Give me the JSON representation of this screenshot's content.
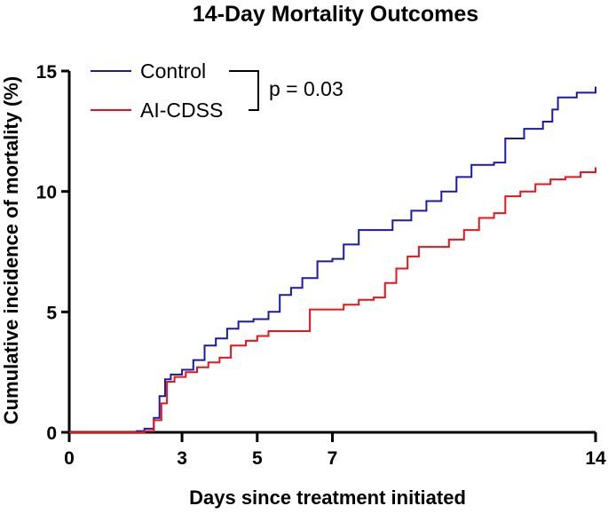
{
  "chart_data": {
    "type": "line",
    "step": true,
    "title": "14-Day Mortality Outcomes",
    "xlabel": "Days since treatment initiated",
    "ylabel": "Cumulative incidence of mortality (%)",
    "xlim": [
      0,
      14
    ],
    "ylim": [
      0,
      15
    ],
    "xticks": [
      0,
      3,
      5,
      7,
      14
    ],
    "yticks": [
      0,
      5,
      10,
      15
    ],
    "legend_position": "top-left",
    "annotation": "p = 0.03",
    "colors": {
      "control": "#1a1aa6",
      "ai_cdss": "#e8141c"
    },
    "series": [
      {
        "name": "Control",
        "key": "control",
        "points": [
          [
            0,
            0
          ],
          [
            1.8,
            0.05
          ],
          [
            2.0,
            0.15
          ],
          [
            2.25,
            0.6
          ],
          [
            2.4,
            1.5
          ],
          [
            2.55,
            2.2
          ],
          [
            2.7,
            2.4
          ],
          [
            3.0,
            2.6
          ],
          [
            3.3,
            3.0
          ],
          [
            3.6,
            3.6
          ],
          [
            3.9,
            3.9
          ],
          [
            4.2,
            4.3
          ],
          [
            4.5,
            4.6
          ],
          [
            4.9,
            4.7
          ],
          [
            5.3,
            5.0
          ],
          [
            5.6,
            5.7
          ],
          [
            5.9,
            6.0
          ],
          [
            6.2,
            6.4
          ],
          [
            6.6,
            7.1
          ],
          [
            7.0,
            7.2
          ],
          [
            7.3,
            7.8
          ],
          [
            7.7,
            8.4
          ],
          [
            8.3,
            8.4
          ],
          [
            8.6,
            8.8
          ],
          [
            9.1,
            9.2
          ],
          [
            9.5,
            9.6
          ],
          [
            9.9,
            10.0
          ],
          [
            10.3,
            10.6
          ],
          [
            10.7,
            11.1
          ],
          [
            11.3,
            11.2
          ],
          [
            11.6,
            12.2
          ],
          [
            12.1,
            12.6
          ],
          [
            12.6,
            12.9
          ],
          [
            12.85,
            13.4
          ],
          [
            13.0,
            13.9
          ],
          [
            13.5,
            14.1
          ],
          [
            14.0,
            14.35
          ]
        ]
      },
      {
        "name": "AI-CDSS",
        "key": "ai_cdss",
        "points": [
          [
            0,
            0
          ],
          [
            2.0,
            0.05
          ],
          [
            2.25,
            0.5
          ],
          [
            2.45,
            1.2
          ],
          [
            2.6,
            2.1
          ],
          [
            2.8,
            2.3
          ],
          [
            3.1,
            2.5
          ],
          [
            3.4,
            2.7
          ],
          [
            3.7,
            2.9
          ],
          [
            4.0,
            3.1
          ],
          [
            4.3,
            3.6
          ],
          [
            4.7,
            3.8
          ],
          [
            5.0,
            4.0
          ],
          [
            5.3,
            4.2
          ],
          [
            5.7,
            4.2
          ],
          [
            6.1,
            4.2
          ],
          [
            6.4,
            5.1
          ],
          [
            6.9,
            5.1
          ],
          [
            7.3,
            5.3
          ],
          [
            7.7,
            5.5
          ],
          [
            8.1,
            5.6
          ],
          [
            8.4,
            6.2
          ],
          [
            8.7,
            6.8
          ],
          [
            9.0,
            7.3
          ],
          [
            9.3,
            7.7
          ],
          [
            9.7,
            7.7
          ],
          [
            10.1,
            8.0
          ],
          [
            10.5,
            8.4
          ],
          [
            10.9,
            8.9
          ],
          [
            11.3,
            9.1
          ],
          [
            11.6,
            9.8
          ],
          [
            12.0,
            10.0
          ],
          [
            12.4,
            10.3
          ],
          [
            12.8,
            10.5
          ],
          [
            13.2,
            10.6
          ],
          [
            13.6,
            10.8
          ],
          [
            14.0,
            11.0
          ]
        ]
      }
    ]
  }
}
